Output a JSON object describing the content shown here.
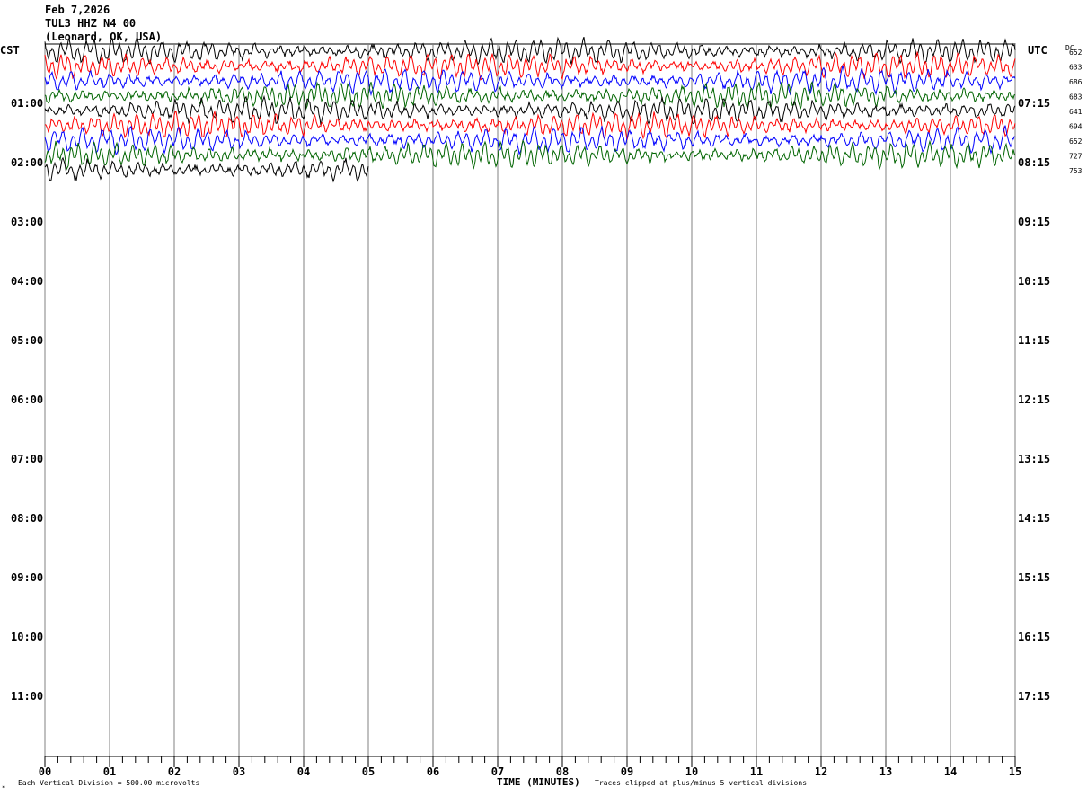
{
  "header": {
    "date": "Feb 7,2026",
    "station": "TUL3 HHZ N4 00",
    "location": "(Leonard, OK, USA)"
  },
  "left_zone": "CST",
  "right_zone": "UTC",
  "dc_label": "DC",
  "footer": {
    "scale_note": "Each Vertical Division =  500.00 microvolts",
    "clip_note": "Traces clipped at plus/minus 5 vertical divisions",
    "corner_mark": "✶"
  },
  "colors": {
    "trace_cycle": [
      "#000000",
      "#ff0000",
      "#0000ff",
      "#006400"
    ],
    "grid": "#808080",
    "axis": "#000000"
  },
  "chart_data": {
    "type": "line",
    "title": "",
    "xlabel": "TIME (MINUTES)",
    "ylabel": "",
    "x_range_minutes": [
      0,
      15
    ],
    "x_ticks": [
      "00",
      "01",
      "02",
      "03",
      "04",
      "05",
      "06",
      "07",
      "08",
      "09",
      "10",
      "11",
      "12",
      "13",
      "14",
      "15"
    ],
    "left_hour_labels": [
      "01:00",
      "02:00",
      "03:00",
      "04:00",
      "05:00",
      "06:00",
      "07:00",
      "08:00",
      "09:00",
      "10:00",
      "11:00"
    ],
    "right_hour_labels": [
      "07:15",
      "08:15",
      "09:15",
      "10:15",
      "11:15",
      "12:15",
      "13:15",
      "14:15",
      "15:15",
      "16:15",
      "17:15"
    ],
    "dc_offsets": [
      "652",
      "633",
      "686",
      "683",
      "641",
      "694",
      "652",
      "727",
      "753"
    ],
    "traces": [
      {
        "row": 0,
        "color": "#000000",
        "end_minute": 15
      },
      {
        "row": 1,
        "color": "#ff0000",
        "end_minute": 15
      },
      {
        "row": 2,
        "color": "#0000ff",
        "end_minute": 15
      },
      {
        "row": 3,
        "color": "#006400",
        "end_minute": 15
      },
      {
        "row": 4,
        "color": "#000000",
        "end_minute": 15
      },
      {
        "row": 5,
        "color": "#ff0000",
        "end_minute": 15
      },
      {
        "row": 6,
        "color": "#0000ff",
        "end_minute": 15
      },
      {
        "row": 7,
        "color": "#006400",
        "end_minute": 15
      },
      {
        "row": 8,
        "color": "#000000",
        "end_minute": 5
      }
    ],
    "vertical_division_microvolts": 500,
    "clip_divisions": 5,
    "grid": true
  }
}
